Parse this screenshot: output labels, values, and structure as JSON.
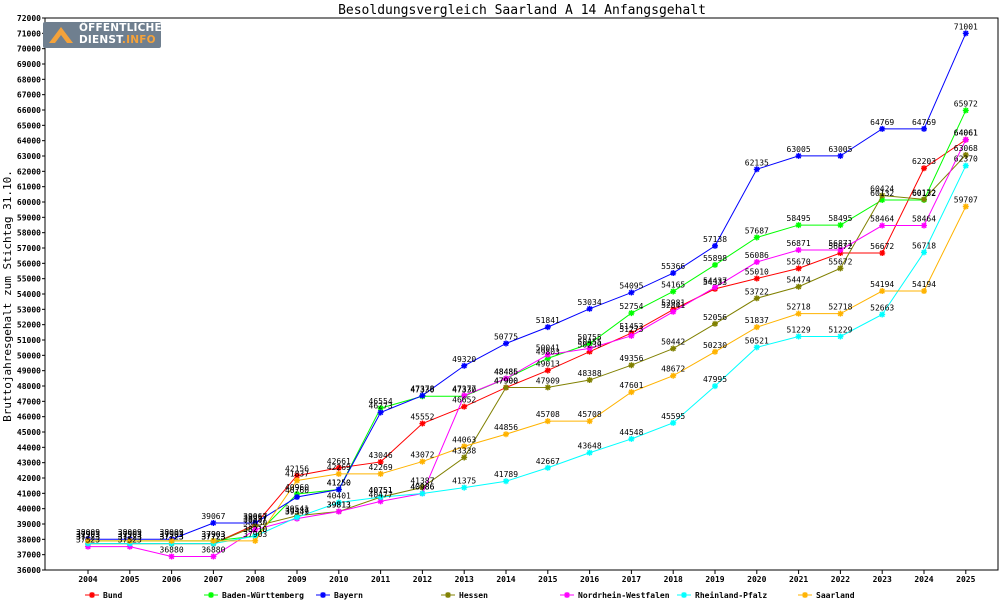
{
  "logo": {
    "line1": "ÖFFENTLICHER",
    "line2": "DIENST",
    "line2_suffix": ".INFO"
  },
  "chart_data": {
    "type": "line",
    "title": "Besoldungsvergleich Saarland A 14 Anfangsgehalt",
    "xlabel": "",
    "ylabel": "Bruttojahresgehalt zum Stichtag 31.10.",
    "ylim": [
      36000,
      72000
    ],
    "ytick_step": 1000,
    "grid": false,
    "legend_position": "bottom",
    "x": [
      "2004",
      "2005",
      "2006",
      "2007",
      "2008",
      "2009",
      "2010",
      "2011",
      "2012",
      "2013",
      "2014",
      "2015",
      "2016",
      "2017",
      "2018",
      "2019",
      "2020",
      "2021",
      "2022",
      "2023",
      "2024",
      "2025"
    ],
    "series": [
      {
        "name": "Bund",
        "color": "#ff0000",
        "values": [
          37723,
          37723,
          37723,
          37723,
          38957,
          42156,
          42661,
          43046,
          45552,
          46652,
          47900,
          49013,
          50239,
          51453,
          52981,
          54333,
          55010,
          55670,
          56672,
          56672,
          62203,
          64061
        ]
      },
      {
        "name": "Baden-Württemberg",
        "color": "#00ff00",
        "values": [
          37903,
          37903,
          37903,
          37903,
          38210,
          40960,
          41250,
          46554,
          47330,
          47330,
          48485,
          49803,
          50755,
          52754,
          54165,
          55898,
          57687,
          58495,
          58495,
          60132,
          60132,
          65972
        ]
      },
      {
        "name": "Bayern",
        "color": "#0000ff",
        "values": [
          38009,
          38009,
          38009,
          39067,
          39067,
          40760,
          41250,
          46273,
          47378,
          49320,
          50775,
          51841,
          53034,
          54095,
          55366,
          57138,
          62135,
          63005,
          63005,
          64769,
          64769,
          71001
        ]
      },
      {
        "name": "Hessen",
        "color": "#808000",
        "values": [
          37723,
          37723,
          37723,
          37723,
          38857,
          39541,
          39813,
          40751,
          41387,
          43338,
          47900,
          47909,
          48388,
          49356,
          50442,
          52056,
          53722,
          54474,
          55672,
          60424,
          60172,
          63068
        ]
      },
      {
        "name": "Nordrhein-Westfalen",
        "color": "#ff00ff",
        "values": [
          37523,
          37523,
          36880,
          36880,
          38630,
          39349,
          39813,
          40477,
          40986,
          47377,
          48486,
          50041,
          50455,
          51273,
          52841,
          54437,
          56086,
          56871,
          56871,
          58464,
          58464,
          64061
        ]
      },
      {
        "name": "Rheinland-Pfalz",
        "color": "#00ffff",
        "values": [
          37723,
          37723,
          37723,
          37723,
          38210,
          39437,
          40401,
          40751,
          40986,
          41375,
          41789,
          42667,
          43648,
          44548,
          45595,
          47995,
          50521,
          51229,
          51229,
          52663,
          56718,
          62370
        ]
      },
      {
        "name": "Saarland",
        "color": "#ffb300",
        "values": [
          37903,
          37903,
          37903,
          37903,
          37903,
          41837,
          42269,
          42269,
          43072,
          44063,
          44856,
          45708,
          45708,
          47601,
          48672,
          50230,
          51837,
          52718,
          52718,
          54194,
          54194,
          59707
        ]
      }
    ]
  }
}
